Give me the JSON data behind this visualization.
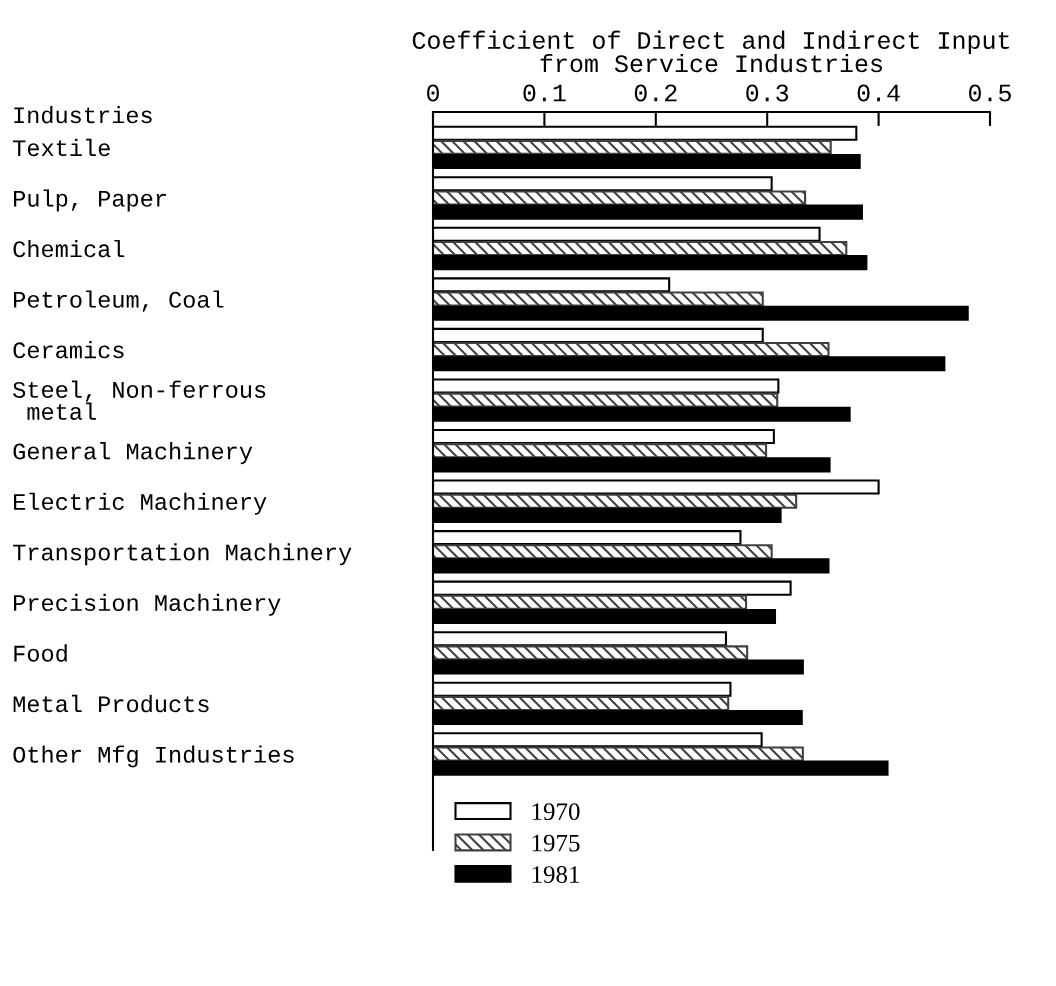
{
  "chart_data": {
    "type": "bar",
    "orientation": "horizontal",
    "xlabel": "Coefficient of Direct and Indirect Input\nfrom Service Industries",
    "annotations": [
      "Industries"
    ],
    "categories": [
      "Textile",
      "Pulp, Paper",
      "Chemical",
      "Petroleum, Coal",
      "Ceramics",
      "Steel, Non-ferrous\n metal",
      "General Machinery",
      "Electric Machinery",
      "Transportation Machinery",
      "Precision Machinery",
      "Food",
      "Metal Products",
      "Other Mfg Industries"
    ],
    "series": [
      {
        "name": "1970",
        "color": "#ffffff",
        "values": [
          0.38,
          0.304,
          0.347,
          0.212,
          0.296,
          0.31,
          0.306,
          0.4,
          0.276,
          0.321,
          0.263,
          0.267,
          0.295
        ]
      },
      {
        "name": "1975",
        "color": "#404040",
        "values": [
          0.357,
          0.334,
          0.371,
          0.296,
          0.355,
          0.309,
          0.299,
          0.326,
          0.304,
          0.281,
          0.282,
          0.265,
          0.332
        ]
      },
      {
        "name": "1981",
        "color": "#000000",
        "values": [
          0.383,
          0.385,
          0.389,
          0.48,
          0.459,
          0.374,
          0.356,
          0.312,
          0.355,
          0.307,
          0.332,
          0.331,
          0.408
        ]
      }
    ],
    "xlim": [
      0,
      0.5
    ],
    "xticks": [
      0,
      0.1,
      0.2,
      0.3,
      0.4,
      0.5
    ],
    "grid": false,
    "legend": "bottom"
  }
}
